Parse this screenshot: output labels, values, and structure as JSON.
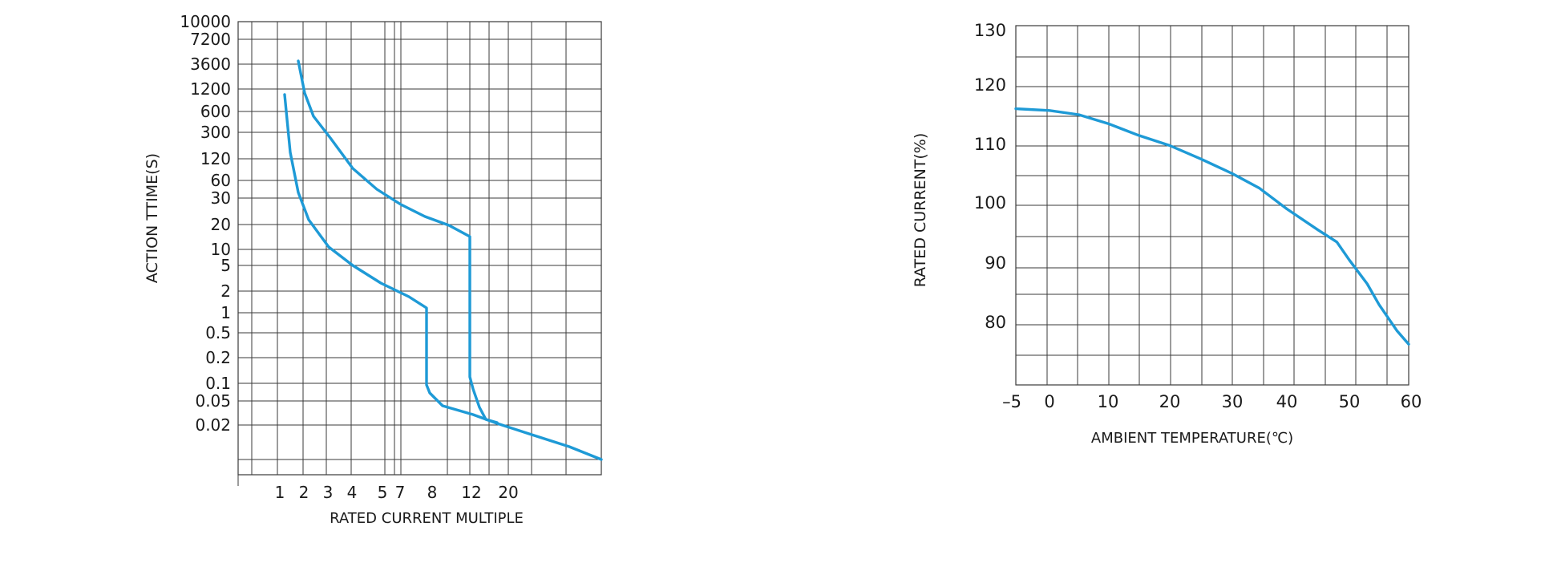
{
  "colors": {
    "curve": "#1e9ad6",
    "grid": "#3a3a3a",
    "text": "#1a1a1a",
    "background": "#ffffff"
  },
  "chart_data": [
    {
      "type": "line",
      "title": "",
      "xlabel": "RATED CURRENT MULTIPLE",
      "ylabel": "ACTION TTIME(S)",
      "x_tick_labels": [
        "1",
        "2",
        "3",
        "4",
        "5",
        "7",
        "8",
        "12",
        "20"
      ],
      "y_tick_labels": [
        "10000",
        "7200",
        "3600",
        "1200",
        "600",
        "300",
        "120",
        "60",
        "30",
        "20",
        "10",
        "5",
        "2",
        "1",
        "0.5",
        "0.2",
        "0.1",
        "0.05",
        "0.02"
      ],
      "grid": true,
      "series": [
        {
          "name": "",
          "x": [
            "1",
            "1.3",
            "2",
            "3",
            "4",
            "5",
            "7",
            "8",
            "8",
            "8.5",
            "12",
            "20"
          ],
          "y": [
            "1200",
            "120",
            "30",
            "10",
            "5",
            "3",
            "1.5",
            "1",
            "0.1",
            "0.05",
            "0.02",
            "0.01"
          ]
        },
        {
          "name": "",
          "x": [
            "2",
            "2.4",
            "3",
            "4",
            "5",
            "7",
            "8",
            "12",
            "12",
            "13",
            "20"
          ],
          "y": [
            "3600",
            "1200",
            "300",
            "60",
            "30",
            "20",
            "17",
            "12",
            "0.1",
            "0.03",
            "0.02"
          ]
        }
      ]
    },
    {
      "type": "line",
      "title": "",
      "xlabel": "AMBIENT TEMPERATURE(℃)",
      "ylabel": "RATED CURRENT(%)",
      "x_tick_labels": [
        "–5",
        "0",
        "10",
        "20",
        "30",
        "40",
        "50",
        "60"
      ],
      "y_tick_labels": [
        "130",
        "120",
        "110",
        "100",
        "90",
        "80"
      ],
      "xlim": [
        -5,
        60
      ],
      "ylim": [
        70,
        130
      ],
      "grid": true,
      "series": [
        {
          "name": "",
          "x": [
            -5,
            0,
            5,
            10,
            15,
            20,
            25,
            30,
            35,
            40,
            45,
            48,
            50,
            53,
            55,
            58,
            60
          ],
          "y": [
            116,
            115.7,
            115,
            113.5,
            111.5,
            109.8,
            107.5,
            105,
            102.5,
            99,
            95.5,
            93.5,
            90.5,
            86.5,
            83,
            78.5,
            76
          ]
        }
      ]
    }
  ]
}
